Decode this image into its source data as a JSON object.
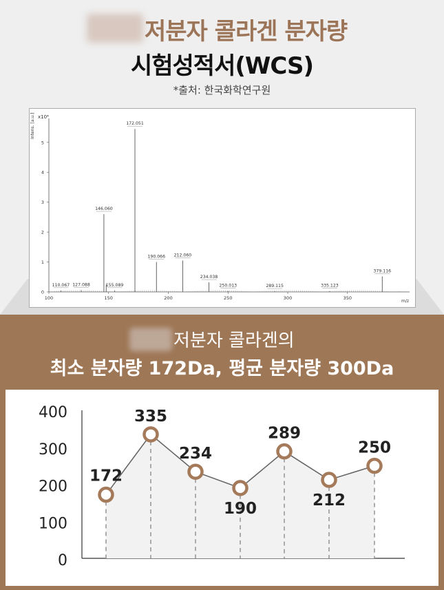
{
  "header": {
    "title_line1": "저분자 콜라겐 분자량",
    "title_line2": "시험성적서(WCS)",
    "source": "*출처: 한국화학연구원"
  },
  "spectrum": {
    "y_axis_label": "Intens. [a.u.]",
    "y_scale_label": "x10⁴",
    "x_axis_label": "m/z",
    "x_ticks": [
      "100",
      "150",
      "200",
      "250",
      "300",
      "350"
    ],
    "y_ticks": [
      "0",
      "1",
      "2",
      "3",
      "4",
      "5"
    ]
  },
  "band": {
    "line1": "저분자 콜라겐의",
    "line2": "최소 분자량 172Da, 평균 분자량 300Da"
  },
  "colors": {
    "brown": "#9e7756",
    "title_brown": "#9c7458",
    "point_stroke": "#a57a5a"
  },
  "chart_data": [
    {
      "type": "bar",
      "title": "",
      "xlabel": "m/z",
      "ylabel": "Intens. [a.u.]",
      "xlim": [
        100,
        410
      ],
      "ylim": [
        0,
        5.5
      ],
      "grid": false,
      "peaks": [
        {
          "x": 110.067,
          "y": 0.05,
          "label": "110.067"
        },
        {
          "x": 127.088,
          "y": 0.06,
          "label": "127.088"
        },
        {
          "x": 146.06,
          "y": 2.6,
          "label": "146.060"
        },
        {
          "x": 148.0,
          "y": 0.25,
          "label": ""
        },
        {
          "x": 155.089,
          "y": 0.05,
          "label": "155.089"
        },
        {
          "x": 172.051,
          "y": 5.45,
          "label": "172.051"
        },
        {
          "x": 190.066,
          "y": 1.0,
          "label": "190.066"
        },
        {
          "x": 212.06,
          "y": 1.05,
          "label": "212.060"
        },
        {
          "x": 234.038,
          "y": 0.32,
          "label": "234.038"
        },
        {
          "x": 250.013,
          "y": 0.03,
          "label": "250.013"
        },
        {
          "x": 289.115,
          "y": 0.02,
          "label": "289.115"
        },
        {
          "x": 335.123,
          "y": 0.03,
          "label": "335.123"
        },
        {
          "x": 379.116,
          "y": 0.52,
          "label": "379.116"
        }
      ]
    },
    {
      "type": "line",
      "title": "",
      "xlabel": "",
      "ylabel": "",
      "ylim": [
        0,
        400
      ],
      "y_ticks": [
        "400",
        "300",
        "200",
        "100",
        "0"
      ],
      "grid": false,
      "values": [
        172,
        335,
        234,
        190,
        289,
        212,
        250
      ]
    }
  ]
}
